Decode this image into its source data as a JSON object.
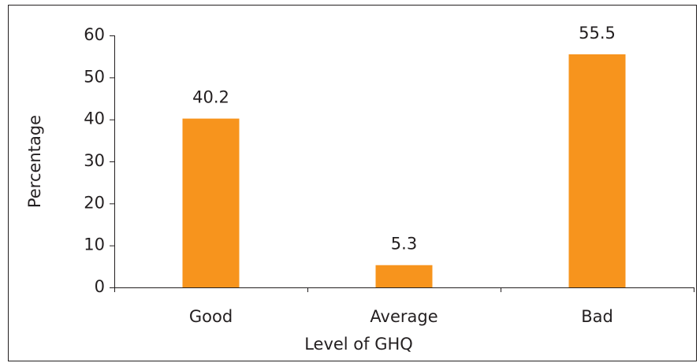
{
  "chart_data": {
    "type": "bar",
    "x_label": "Level of GHQ",
    "y_label": "Percentage",
    "categories": [
      "Good",
      "Average",
      "Bad"
    ],
    "values": [
      40.2,
      5.3,
      55.5
    ],
    "color": "#f7941d",
    "ylim": [
      0,
      60
    ],
    "yticks": [
      0,
      10,
      20,
      30,
      40,
      50,
      60
    ],
    "grid": false,
    "data_labels": true
  }
}
